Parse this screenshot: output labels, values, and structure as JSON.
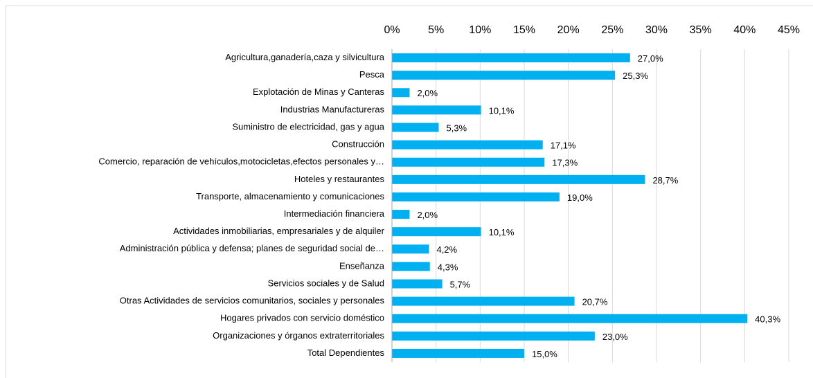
{
  "chart_data": {
    "type": "bar",
    "orientation": "horizontal",
    "color": "#00b0f0",
    "grid": true,
    "categories": [
      "Agricultura,ganadería,caza y silvicultura",
      "Pesca",
      "Explotación de Minas y Canteras",
      "Industrias Manufactureras",
      "Suministro de electricidad, gas y agua",
      "Construcción",
      "Comercio, reparación de vehículos,motocicletas,efectos personales y…",
      "Hoteles y restaurantes",
      "Transporte, almacenamiento y comunicaciones",
      "Intermediación financiera",
      "Actividades inmobiliarias, empresariales y de alquiler",
      "Administración pública y defensa; planes de seguridad social de…",
      "Enseñanza",
      "Servicios sociales y de Salud",
      "Otras Actividades de servicios comunitarios, sociales y personales",
      "Hogares privados con servicio doméstico",
      "Organizaciones y órganos extraterritoriales",
      "Total Dependientes"
    ],
    "values": [
      27.0,
      25.3,
      2.0,
      10.1,
      5.3,
      17.1,
      17.3,
      28.7,
      19.0,
      2.0,
      10.1,
      4.2,
      4.3,
      5.7,
      20.7,
      40.3,
      23.0,
      15.0
    ],
    "value_labels": [
      "27,0%",
      "25,3%",
      "2,0%",
      "10,1%",
      "5,3%",
      "17,1%",
      "17,3%",
      "28,7%",
      "19,0%",
      "2,0%",
      "10,1%",
      "4,2%",
      "4,3%",
      "5,7%",
      "20,7%",
      "40,3%",
      "23,0%",
      "15,0%"
    ],
    "xlim": [
      0,
      45
    ],
    "xticks": [
      {
        "value": 0,
        "label": "0%"
      },
      {
        "value": 5,
        "label": "5%"
      },
      {
        "value": 10,
        "label": "10%"
      },
      {
        "value": 15,
        "label": "15%"
      },
      {
        "value": 20,
        "label": "20%"
      },
      {
        "value": 25,
        "label": "25%"
      },
      {
        "value": 30,
        "label": "30%"
      },
      {
        "value": 35,
        "label": "35%"
      },
      {
        "value": 40,
        "label": "40%"
      },
      {
        "value": 45,
        "label": "45%"
      }
    ]
  }
}
